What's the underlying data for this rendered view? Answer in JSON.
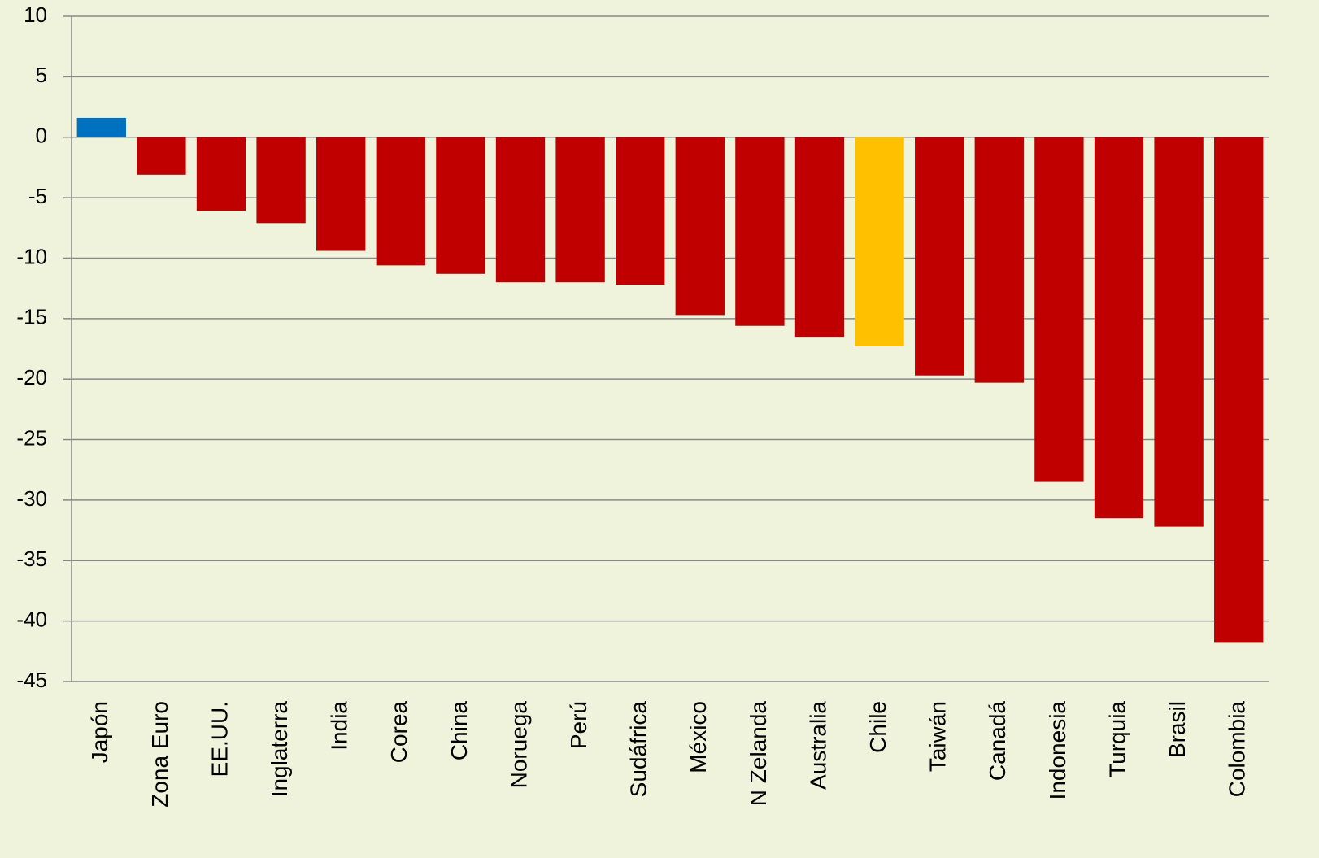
{
  "chart_data": {
    "type": "bar",
    "categories": [
      "Japón",
      "Zona Euro",
      "EE.UU.",
      "Inglaterra",
      "India",
      "Corea",
      "China",
      "Noruega",
      "Perú",
      "Sudáfrica",
      "México",
      "N Zelanda",
      "Australia",
      "Chile",
      "Taiwán",
      "Canadá",
      "Indonesia",
      "Turquia",
      "Brasil",
      "Colombia"
    ],
    "values": [
      1.6,
      -3.1,
      -6.1,
      -7.1,
      -9.4,
      -10.6,
      -11.3,
      -12.0,
      -12.0,
      -12.2,
      -14.7,
      -15.6,
      -16.5,
      -17.3,
      -19.7,
      -20.3,
      -28.5,
      -31.5,
      -32.2,
      -41.8
    ],
    "colors": [
      "#0070c0",
      "#c00000",
      "#c00000",
      "#c00000",
      "#c00000",
      "#c00000",
      "#c00000",
      "#c00000",
      "#c00000",
      "#c00000",
      "#c00000",
      "#c00000",
      "#c00000",
      "#ffc000",
      "#c00000",
      "#c00000",
      "#c00000",
      "#c00000",
      "#c00000",
      "#c00000"
    ],
    "ylim": [
      -45,
      10
    ],
    "yticks": [
      -45,
      -40,
      -35,
      -30,
      -25,
      -20,
      -15,
      -10,
      -5,
      0,
      5,
      10
    ],
    "grid": true
  }
}
